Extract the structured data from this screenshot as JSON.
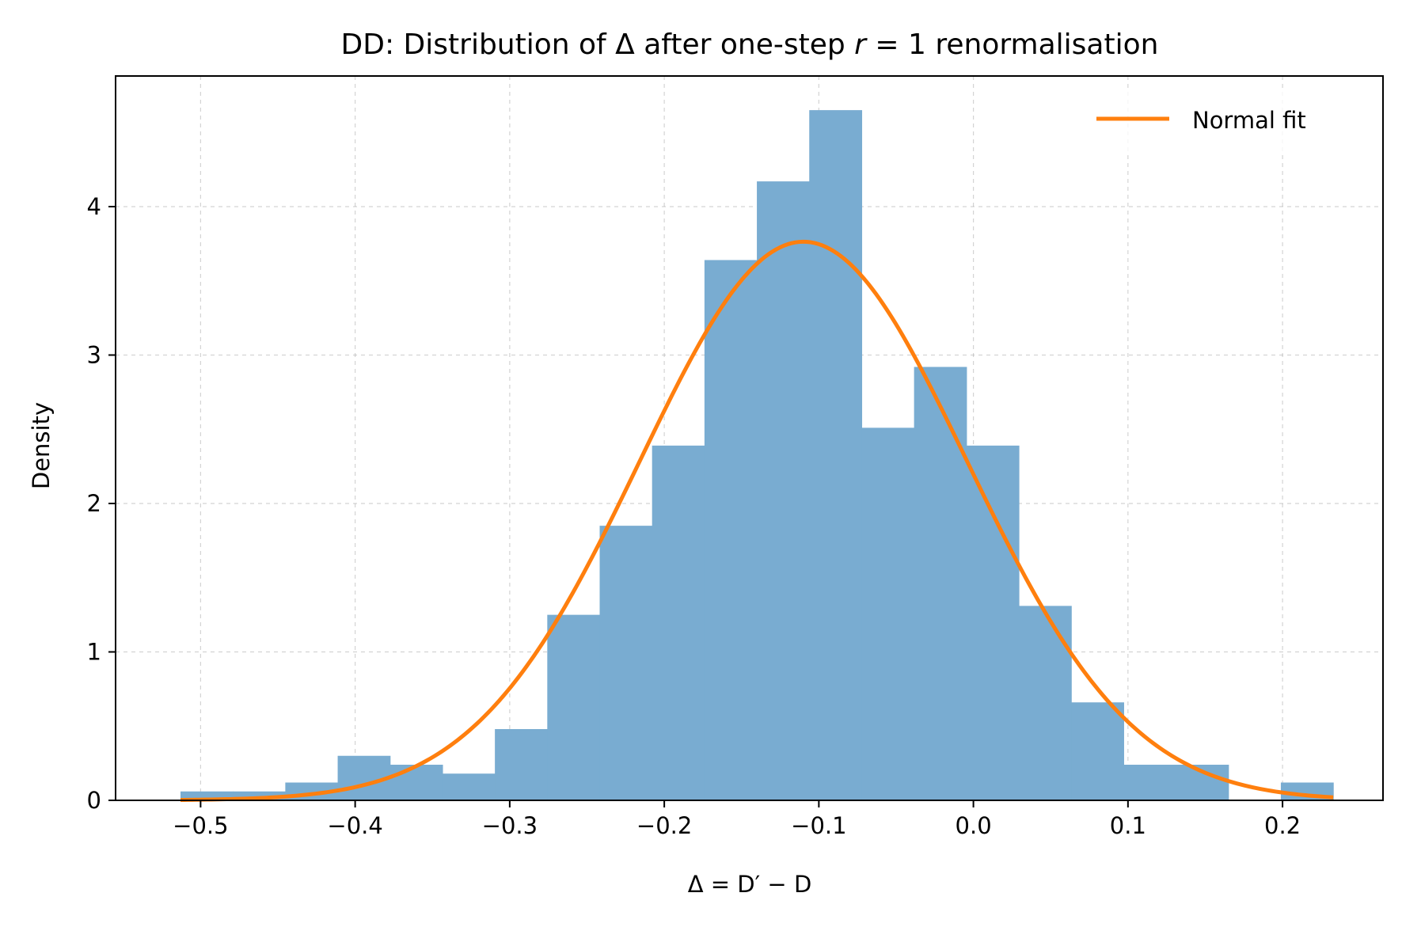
{
  "chart_data": {
    "type": "bar",
    "title_prefix": "DD: Distribution of Δ after one-step ",
    "title_math": "r",
    "title_suffix": " = 1 renormalisation",
    "xlabel_main": "Δ = D",
    "xlabel_prime": "′",
    "xlabel_tail": " − D",
    "ylabel": "Density",
    "xlim": [
      -0.555,
      0.265
    ],
    "ylim": [
      0,
      4.88
    ],
    "xticks": [
      -0.5,
      -0.4,
      -0.3,
      -0.2,
      -0.1,
      0.0,
      0.1,
      0.2
    ],
    "xtick_labels": [
      "−0.5",
      "−0.4",
      "−0.3",
      "−0.2",
      "−0.1",
      "0.0",
      "0.1",
      "0.2"
    ],
    "yticks": [
      0,
      1,
      2,
      3,
      4
    ],
    "ytick_labels": [
      "0",
      "1",
      "2",
      "3",
      "4"
    ],
    "grid": true,
    "legend_position": "top-right",
    "bar_color": "#79acd1",
    "bin_edges": [
      -0.513,
      -0.4791,
      -0.4452,
      -0.4113,
      -0.3774,
      -0.3435,
      -0.3096,
      -0.2757,
      -0.2418,
      -0.2079,
      -0.174,
      -0.1401,
      -0.1062,
      -0.0723,
      -0.0384,
      -0.0045,
      0.0294,
      0.0633,
      0.0972,
      0.1311,
      0.165,
      0.1989,
      0.2328
    ],
    "values": [
      0.06,
      0.06,
      0.12,
      0.3,
      0.24,
      0.18,
      0.48,
      1.25,
      1.85,
      2.39,
      3.64,
      4.17,
      4.65,
      2.51,
      2.92,
      2.39,
      1.31,
      0.66,
      0.24,
      0.24,
      0.0,
      0.12
    ],
    "series": [
      {
        "name": "Normal fit",
        "type": "line",
        "color": "#ff7f0e",
        "mean": -0.11,
        "std": 0.106,
        "x_range": [
          -0.513,
          0.2328
        ]
      }
    ]
  }
}
